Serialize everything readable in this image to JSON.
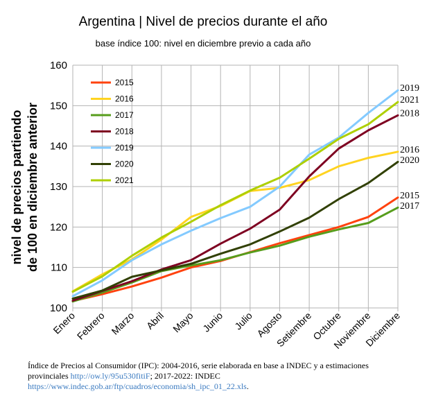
{
  "chart_data": {
    "type": "line",
    "title": "Argentina | Nivel de precios durante el año",
    "subtitle": "base índice 100: nivel en diciembre previo a cada año",
    "ylabel_line1": "nivel de precios partiendo",
    "ylabel_line2": "de 100 en diciembre anterior",
    "xlabel": "",
    "ylim": [
      100,
      160
    ],
    "yticks": [
      100,
      110,
      120,
      130,
      140,
      150,
      160
    ],
    "grid": true,
    "legend_position": "top-left",
    "categories": [
      "Enero",
      "Febrero",
      "Marzo",
      "Abril",
      "Mayo",
      "Junio",
      "Julio",
      "Agosto",
      "Setiembre",
      "Octubre",
      "Noviembre",
      "Diciembre"
    ],
    "series": [
      {
        "name": "2015",
        "color": "#ff420e",
        "values": [
          101.7,
          103.4,
          105.3,
          107.5,
          110.0,
          111.6,
          113.8,
          116.0,
          118.0,
          120.0,
          122.5,
          127.3
        ]
      },
      {
        "name": "2016",
        "color": "#ffd320",
        "values": [
          104.1,
          108.3,
          112.0,
          116.9,
          122.5,
          125.2,
          128.9,
          129.7,
          131.6,
          135.0,
          137.1,
          138.6
        ]
      },
      {
        "name": "2017",
        "color": "#579d1c",
        "values": [
          101.6,
          103.8,
          106.3,
          109.1,
          110.5,
          111.8,
          113.7,
          115.4,
          117.6,
          119.4,
          121.0,
          124.8
        ]
      },
      {
        "name": "2018",
        "color": "#7e0021",
        "values": [
          101.8,
          104.2,
          106.6,
          109.5,
          111.8,
          115.9,
          119.6,
          124.3,
          132.5,
          139.4,
          143.9,
          147.6
        ]
      },
      {
        "name": "2019",
        "color": "#83caff",
        "values": [
          102.9,
          106.8,
          111.8,
          115.7,
          119.1,
          122.2,
          125.0,
          130.0,
          137.9,
          142.1,
          148.2,
          153.8
        ]
      },
      {
        "name": "2020",
        "color": "#314004",
        "values": [
          102.3,
          104.3,
          107.7,
          109.3,
          110.9,
          113.4,
          115.7,
          118.9,
          122.3,
          126.9,
          130.9,
          136.1
        ]
      },
      {
        "name": "2021",
        "color": "#aecf00",
        "values": [
          104.0,
          107.8,
          112.9,
          117.4,
          121.3,
          125.4,
          129.0,
          132.2,
          136.9,
          141.8,
          145.4,
          150.9
        ]
      }
    ],
    "end_labels": [
      {
        "text": "2019",
        "series": "2019"
      },
      {
        "text": "2021",
        "series": "2021"
      },
      {
        "text": "2018",
        "series": "2018"
      },
      {
        "text": "2016",
        "series": "2016"
      },
      {
        "text": "2020",
        "series": "2020"
      },
      {
        "text": "2015",
        "series": "2015"
      },
      {
        "text": "2017",
        "series": "2017"
      }
    ]
  },
  "footnote": {
    "line1": "Índice de Precios al Consumidor (IPC): 2004-2016, serie elaborada en base a INDEC y a estimaciones",
    "line2_text": "provinciales ",
    "line2_link": "http://ow.ly/95u530fitiF",
    "line2_rest": "; 2017-2022: INDEC",
    "line3_link": "https://www.indec.gob.ar/ftp/cuadros/economia/sh_ipc_01_22.xls",
    "line3_rest": "."
  }
}
